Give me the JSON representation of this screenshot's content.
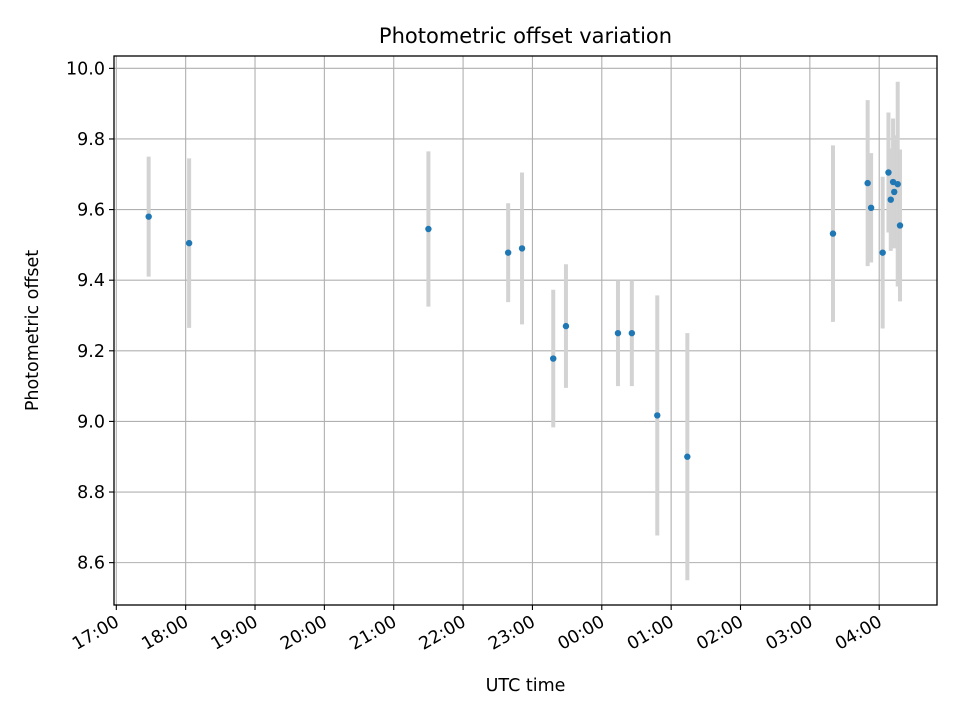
{
  "chart_data": {
    "type": "scatter",
    "title": "Photometric offset variation",
    "xlabel": "UTC time",
    "ylabel": "Photometric offset",
    "x_tick_labels": [
      "17:00",
      "18:00",
      "19:00",
      "20:00",
      "21:00",
      "22:00",
      "23:00",
      "00:00",
      "01:00",
      "02:00",
      "03:00",
      "04:00"
    ],
    "y_tick_labels": [
      "8.6",
      "8.8",
      "9.0",
      "9.2",
      "9.4",
      "9.6",
      "9.8",
      "10.0"
    ],
    "x_ticks": [
      "17:00",
      "18:00",
      "19:00",
      "20:00",
      "21:00",
      "22:00",
      "23:00",
      "00:00",
      "01:00",
      "02:00",
      "03:00",
      "04:00"
    ],
    "y_ticks": [
      8.6,
      8.8,
      9.0,
      9.2,
      9.4,
      9.6,
      9.8,
      10.0
    ],
    "xlim": [
      "16:58",
      "04:50"
    ],
    "ylim": [
      8.48,
      10.035
    ],
    "grid": true,
    "colors": {
      "point": "#1f77b4",
      "errorbar": "#d3d3d3",
      "grid": "#b0b0b0"
    },
    "series": [
      {
        "points": [
          {
            "x": "17:28",
            "y": 9.58,
            "err": 0.17
          },
          {
            "x": "18:03",
            "y": 9.505,
            "err": 0.24
          },
          {
            "x": "21:30",
            "y": 9.545,
            "err": 0.22
          },
          {
            "x": "22:39",
            "y": 9.478,
            "err": 0.14
          },
          {
            "x": "22:51",
            "y": 9.49,
            "err": 0.215
          },
          {
            "x": "23:18",
            "y": 9.178,
            "err": 0.195
          },
          {
            "x": "23:29",
            "y": 9.27,
            "err": 0.175
          },
          {
            "x": "00:14",
            "y": 9.25,
            "err": 0.15
          },
          {
            "x": "00:26",
            "y": 9.25,
            "err": 0.15
          },
          {
            "x": "00:48",
            "y": 9.017,
            "err": 0.34
          },
          {
            "x": "01:14",
            "y": 8.9,
            "err": 0.35
          },
          {
            "x": "03:20",
            "y": 9.532,
            "err": 0.25
          },
          {
            "x": "03:50",
            "y": 9.675,
            "err": 0.235
          },
          {
            "x": "03:53",
            "y": 9.605,
            "err": 0.155
          },
          {
            "x": "04:03",
            "y": 9.478,
            "err": 0.215
          },
          {
            "x": "04:08",
            "y": 9.705,
            "err": 0.17
          },
          {
            "x": "04:10",
            "y": 9.628,
            "err": 0.145
          },
          {
            "x": "04:12",
            "y": 9.678,
            "err": 0.18
          },
          {
            "x": "04:13",
            "y": 9.65,
            "err": 0.16
          },
          {
            "x": "04:16",
            "y": 9.672,
            "err": 0.29
          },
          {
            "x": "04:18",
            "y": 9.555,
            "err": 0.215
          }
        ]
      }
    ]
  }
}
